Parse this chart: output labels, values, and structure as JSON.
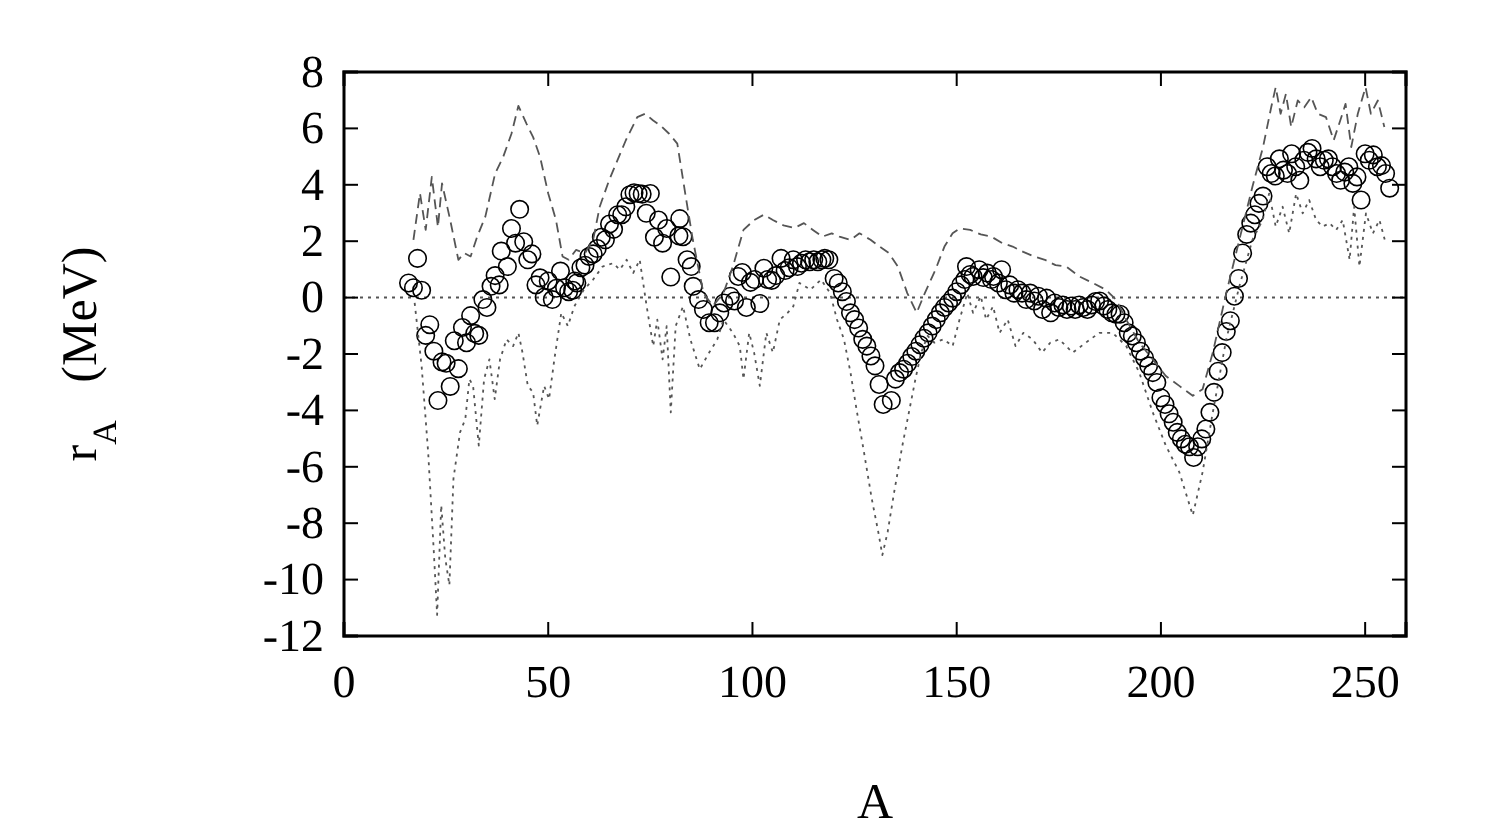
{
  "chart_data": {
    "type": "scatter",
    "xlabel": "A",
    "ylabel": "r$_{A}$   (MeV)",
    "xlim": [
      0,
      260
    ],
    "ylim": [
      -12,
      8
    ],
    "xticks": [
      0,
      50,
      100,
      150,
      200,
      250
    ],
    "yticks": [
      -12,
      -10,
      -8,
      -6,
      -4,
      -2,
      0,
      2,
      4,
      6,
      8
    ],
    "grid": false,
    "ref_lines": [
      {
        "axis": "y",
        "value": 0,
        "color": "#555555",
        "line_style": "dotted"
      }
    ],
    "series": [
      {
        "marker": "circle",
        "color": "#000000",
        "x": [
          15.8,
          17,
          18,
          19,
          20,
          21,
          22,
          23,
          24,
          25,
          26,
          27,
          28,
          29,
          30,
          31,
          32,
          33,
          34,
          35,
          36,
          37,
          38,
          38.5,
          40,
          41,
          42,
          43,
          44,
          45,
          46,
          47,
          48,
          49,
          50,
          51,
          52,
          53,
          54,
          55,
          56,
          56.5,
          57,
          58,
          59,
          60,
          61,
          62,
          63,
          64,
          65,
          66,
          67,
          68,
          69,
          70,
          71,
          72,
          73,
          74,
          75,
          76,
          77,
          78,
          79,
          80,
          82,
          82.2,
          83,
          84,
          85,
          85.5,
          86.8,
          88,
          89.4,
          90.7,
          92,
          93,
          94.6,
          95.6,
          96.5,
          97.5,
          98.5,
          99.5,
          100.5,
          101.8,
          102.8,
          103.7,
          104.7,
          105.7,
          107,
          108,
          109,
          110,
          111,
          112,
          113,
          114,
          115,
          116,
          117,
          117.7,
          118.7,
          120,
          121,
          122,
          123,
          124,
          125,
          126,
          127,
          128,
          129,
          130,
          131,
          132,
          134,
          135,
          136,
          137,
          138,
          139,
          140,
          141,
          142,
          143,
          144,
          145,
          146,
          147,
          148,
          149,
          150,
          151,
          152,
          152.4,
          153.3,
          154,
          155.5,
          156.5,
          157.5,
          158.5,
          159,
          160.2,
          161,
          162,
          163,
          164,
          165,
          166,
          167,
          168,
          169,
          170,
          171,
          172,
          173,
          174,
          175,
          176,
          177,
          178,
          179,
          180,
          181,
          182,
          183,
          184,
          185,
          186,
          187,
          188,
          189,
          190,
          191,
          192,
          193,
          194,
          195,
          196,
          197,
          198,
          199,
          200,
          201,
          202,
          203,
          204,
          205,
          206,
          207,
          208,
          209,
          210,
          211,
          212,
          213,
          214,
          215,
          216,
          217,
          218,
          219,
          220,
          221,
          222,
          223,
          224,
          225,
          226,
          227,
          228,
          229,
          230,
          231,
          232,
          233,
          234,
          235,
          236,
          237,
          238,
          239,
          240,
          241,
          242,
          243,
          244,
          245,
          246,
          247,
          248,
          249,
          250,
          251,
          252,
          253,
          254,
          255,
          256
        ],
        "values": [
          0.52,
          0.35,
          1.39,
          0.26,
          -1.34,
          -0.96,
          -1.9,
          -3.65,
          -2.28,
          -2.33,
          -3.15,
          -1.53,
          -2.52,
          -1.06,
          -1.6,
          -0.64,
          -1.27,
          -1.34,
          -0.07,
          -0.35,
          0.4,
          0.78,
          0.45,
          1.65,
          1.1,
          2.45,
          1.93,
          3.13,
          1.98,
          1.34,
          1.55,
          0.45,
          0.7,
          0.02,
          0.59,
          -0.07,
          0.33,
          0.94,
          0.35,
          0.21,
          0.26,
          0.59,
          0.52,
          1.06,
          1.15,
          1.46,
          1.55,
          1.74,
          2.14,
          2.05,
          2.61,
          2.42,
          2.94,
          2.94,
          3.22,
          3.65,
          3.72,
          3.69,
          3.67,
          2.99,
          3.69,
          2.14,
          2.75,
          1.93,
          2.45,
          0.73,
          2.19,
          2.8,
          2.16,
          1.34,
          1.1,
          0.4,
          -0.07,
          -0.42,
          -0.89,
          -0.89,
          -0.54,
          -0.19,
          0.05,
          -0.12,
          0.75,
          0.89,
          -0.35,
          0.54,
          0.64,
          -0.21,
          1.04,
          0.64,
          0.61,
          0.78,
          1.39,
          0.96,
          1.06,
          1.34,
          1.1,
          1.22,
          1.34,
          1.27,
          1.34,
          1.27,
          1.34,
          1.39,
          1.34,
          0.68,
          0.52,
          0.21,
          -0.14,
          -0.54,
          -0.78,
          -1.08,
          -1.48,
          -1.72,
          -2.07,
          -2.42,
          -3.08,
          -3.79,
          -3.65,
          -2.89,
          -2.66,
          -2.54,
          -2.33,
          -2.09,
          -1.9,
          -1.67,
          -1.44,
          -1.25,
          -1.01,
          -0.78,
          -0.54,
          -0.35,
          -0.19,
          -0.02,
          0.21,
          0.45,
          0.64,
          1.1,
          0.82,
          0.75,
          0.99,
          0.71,
          0.87,
          0.64,
          0.75,
          0.52,
          0.99,
          0.28,
          0.45,
          0.16,
          0.28,
          0.16,
          -0.07,
          0.16,
          -0.12,
          0.05,
          -0.42,
          -0.02,
          -0.54,
          -0.19,
          -0.35,
          -0.26,
          -0.42,
          -0.3,
          -0.42,
          -0.26,
          -0.35,
          -0.42,
          -0.26,
          -0.14,
          -0.12,
          -0.3,
          -0.42,
          -0.54,
          -0.59,
          -0.59,
          -0.89,
          -1.25,
          -1.36,
          -1.6,
          -1.9,
          -2.14,
          -2.42,
          -2.66,
          -3.01,
          -3.55,
          -3.79,
          -4.12,
          -4.42,
          -4.78,
          -5.01,
          -5.2,
          -5.29,
          -5.67,
          -5.29,
          -5.01,
          -4.66,
          -4.07,
          -3.36,
          -2.61,
          -1.95,
          -1.2,
          -0.82,
          0.05,
          0.68,
          1.58,
          2.24,
          2.64,
          2.94,
          3.34,
          3.6,
          4.64,
          4.4,
          4.31,
          4.92,
          4.52,
          4.4,
          5.1,
          4.64,
          4.16,
          4.87,
          5.15,
          5.29,
          4.92,
          4.64,
          4.87,
          4.92,
          4.64,
          4.4,
          4.16,
          4.45,
          4.64,
          4.05,
          4.28,
          3.46,
          5.1,
          4.87,
          5.06,
          4.64,
          4.68,
          4.4,
          3.88
        ]
      },
      {
        "type": "line",
        "line_style": "dashed",
        "marker": "none",
        "color": "#555555",
        "x": [
          17,
          18.6,
          20,
          21.5,
          23,
          24,
          26,
          28,
          29.4,
          31,
          32.6,
          34.6,
          37,
          39,
          41,
          42.7,
          44.7,
          46.3,
          48,
          50,
          51.9,
          53.5,
          55,
          56.8,
          59,
          61,
          62.6,
          64.9,
          66.6,
          69,
          71.8,
          73.7,
          75.7,
          77.6,
          79.6,
          81.6,
          83.8,
          85.4,
          88,
          90.3,
          92.9,
          95.2,
          97.8,
          100.4,
          102.8,
          105,
          107.6,
          110.3,
          112.6,
          114.8,
          117.1,
          119.4,
          121.3,
          124,
          126.2,
          128.9,
          131.1,
          133.4,
          135.6,
          137.9,
          140.2,
          142.2,
          144.8,
          147,
          149,
          150.7,
          153.3,
          155.9,
          158.5,
          161.2,
          163.7,
          166.3,
          168.9,
          171.6,
          174.2,
          176.8,
          180,
          183.3,
          186.5,
          189,
          191.5,
          194.7,
          198,
          201.2,
          204.5,
          207.8,
          210.2,
          212.7,
          216,
          219.2,
          222.4,
          225,
          227,
          228.1,
          229.3,
          230.6,
          231.9,
          233.5,
          235.1,
          236.8,
          238.4,
          240.4,
          242.3,
          243.9,
          245.2,
          246.6,
          248.2,
          250.1,
          251.4,
          253.1,
          254.7
        ],
        "values": [
          2.05,
          3.7,
          2.4,
          4.28,
          2.5,
          4.05,
          2.75,
          1.34,
          1.58,
          1.46,
          2.16,
          2.87,
          4.4,
          5,
          5.81,
          6.8,
          6.16,
          5.69,
          4.99,
          3.69,
          2.75,
          1.46,
          1.34,
          1.69,
          1.58,
          2.05,
          3.22,
          4.16,
          4.75,
          5.58,
          6.4,
          6.52,
          6.28,
          6.09,
          5.81,
          5.46,
          3.46,
          2.05,
          0.16,
          -0.3,
          0.16,
          1.1,
          2.4,
          2.75,
          2.94,
          2.75,
          2.56,
          2.47,
          2.64,
          2.4,
          2.16,
          2.28,
          2.16,
          2.05,
          2.28,
          2.05,
          1.81,
          1.58,
          1.1,
          0.16,
          -0.54,
          0.16,
          0.99,
          1.81,
          2.28,
          2.45,
          2.4,
          2.24,
          2.16,
          1.93,
          1.81,
          1.62,
          1.46,
          1.34,
          1.15,
          1.1,
          0.75,
          0.52,
          0.28,
          -0.07,
          -0.78,
          -1.6,
          -2.19,
          -2.78,
          -3.13,
          -3.48,
          -3.25,
          -1.95,
          0.16,
          2.05,
          3.93,
          5.34,
          6.75,
          7.46,
          6.52,
          7.22,
          6.05,
          6.99,
          6.75,
          7.11,
          6.52,
          6.4,
          5.58,
          6.28,
          6.87,
          5.34,
          6.52,
          7.46,
          6.52,
          6.99,
          6.05
        ]
      },
      {
        "type": "line",
        "line_style": "dotted",
        "marker": "none",
        "color": "#555555",
        "x": [
          17.3,
          19,
          20.6,
          21.9,
          22.8,
          23.8,
          24.8,
          25.8,
          26.8,
          28.4,
          29.7,
          30.7,
          31.6,
          33,
          34.3,
          35.6,
          36.9,
          38.2,
          39.8,
          41.4,
          42.7,
          43.7,
          45,
          46.3,
          47.3,
          49,
          50.2,
          51.5,
          53.2,
          54.8,
          56.4,
          58.7,
          61,
          63.3,
          65.9,
          67.5,
          69.2,
          70.8,
          72.4,
          74.1,
          75.7,
          76.7,
          78,
          79,
          80,
          81.2,
          83,
          84.8,
          87.1,
          89.4,
          91.4,
          92.9,
          95.2,
          96.9,
          97.8,
          99.2,
          100.4,
          101.8,
          103.4,
          105,
          106.7,
          108.6,
          110,
          111.5,
          114.2,
          116.8,
          119,
          120.7,
          122.4,
          124,
          125.6,
          127.3,
          129.2,
          130.8,
          131.8,
          133.1,
          134.7,
          136.7,
          138.3,
          139.9,
          141.3,
          142.9,
          144.5,
          146.8,
          149,
          150.7,
          152.6,
          154,
          155.9,
          157.2,
          158.9,
          160.5,
          162.5,
          164.4,
          166.3,
          168.6,
          170.9,
          172.9,
          175.1,
          178.4,
          181.6,
          184.9,
          188.2,
          191.5,
          194.7,
          198,
          201.2,
          204.5,
          207.8,
          210.2,
          212.7,
          216,
          219.2,
          222.4,
          224.9,
          226.5,
          228.1,
          229.8,
          231.4,
          233.1,
          234.7,
          236.3,
          238,
          239.6,
          241.3,
          242.9,
          244.5,
          246.2,
          247.3,
          248.6,
          250.2,
          251.9,
          253.5,
          254.8
        ],
        "values": [
          -0.19,
          -2.42,
          -5.48,
          -8.78,
          -11.25,
          -7.36,
          -9.25,
          -10.2,
          -6.42,
          -4.78,
          -4.31,
          -2.89,
          -3.13,
          -5.25,
          -2.89,
          -2.19,
          -3.6,
          -2.19,
          -1.48,
          -1.72,
          -1.25,
          -1.95,
          -3.13,
          -3.36,
          -4.54,
          -3.13,
          -3.6,
          -2.19,
          -0.54,
          -1.01,
          -0.31,
          0.28,
          0.64,
          1.1,
          1.22,
          0.99,
          1.34,
          0.87,
          1.34,
          -0.31,
          -1.72,
          -0.78,
          -2.19,
          -1.01,
          -4.07,
          -1.01,
          -0.31,
          -1.48,
          -2.54,
          -1.95,
          -1.48,
          -0.78,
          -1.25,
          -1.72,
          -2.89,
          -1.25,
          -1.95,
          -3.13,
          -1.25,
          -1.95,
          -0.78,
          -0.54,
          -0.31,
          0.52,
          0.28,
          0.64,
          0.16,
          -0.78,
          -1.48,
          -2.66,
          -4.07,
          -5.48,
          -7.13,
          -8.31,
          -9.13,
          -8.31,
          -6.89,
          -5.25,
          -4.07,
          -2.89,
          -1.95,
          -1.36,
          -1.6,
          -1.48,
          -1.72,
          -0.78,
          0.16,
          -0.54,
          0.05,
          -0.78,
          -0.31,
          -1.25,
          -0.78,
          -1.72,
          -1.25,
          -1.48,
          -1.95,
          -1.6,
          -1.48,
          -1.95,
          -1.6,
          -1.25,
          -1.25,
          -1.72,
          -2.66,
          -4.07,
          -5.25,
          -6.19,
          -7.72,
          -6.19,
          -4.07,
          -1.48,
          0.4,
          2.05,
          2.75,
          3.69,
          2.52,
          3.22,
          2.28,
          3.69,
          2.99,
          3.46,
          2.75,
          2.52,
          2.64,
          2.4,
          2.75,
          1.34,
          3.22,
          1.1,
          2.99,
          2.28,
          2.75,
          2.05
        ]
      }
    ]
  }
}
